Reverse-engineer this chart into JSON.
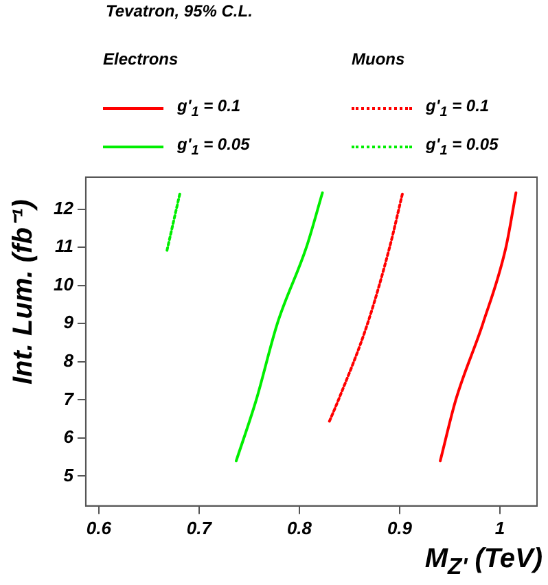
{
  "chart_data": {
    "type": "line",
    "title": "Tevatron, 95% C.L.",
    "annotations": [
      "Electrons",
      "Muons"
    ],
    "xlabel": "M$_{Z'}$ (TeV)",
    "ylabel": "Int. Lum. (fb⁻¹)",
    "xlim": [
      0.587,
      1.037
    ],
    "xticks": [
      0.6,
      0.7,
      0.8,
      0.9,
      1
    ],
    "ylim": [
      4.22,
      12.84
    ],
    "yticks": [
      5,
      6,
      7,
      8,
      9,
      10,
      11,
      12
    ],
    "grid": false,
    "legend": "top",
    "marker": "none",
    "series": [
      {
        "name": "g'$_{1}$ = 0.1",
        "color": "#ff0000",
        "line_style": "solid",
        "x": [
          0.9405,
          0.956,
          0.983,
          1.006,
          1.016
        ],
        "values": [
          5.4,
          7,
          9,
          11,
          12.43
        ]
      },
      {
        "name": "g'$_{1}$ = 0.05",
        "color": "#00ee00",
        "line_style": "solid",
        "x": [
          0.737,
          0.757,
          0.778,
          0.807,
          0.823
        ],
        "values": [
          5.4,
          7,
          9,
          11,
          12.43
        ]
      },
      {
        "name": "g'$_{1}$ = 0.1",
        "color": "#ff0000",
        "line_style": "dotted",
        "x": [
          0.83,
          0.839,
          0.868,
          0.89,
          0.903
        ],
        "values": [
          6.44,
          7,
          9,
          11,
          12.43
        ]
      },
      {
        "name": "g'$_{1}$ = 0.05",
        "color": "#00ee00",
        "line_style": "dotted",
        "x": [
          0.668,
          0.681
        ],
        "values": [
          10.92,
          12.43
        ]
      }
    ]
  }
}
